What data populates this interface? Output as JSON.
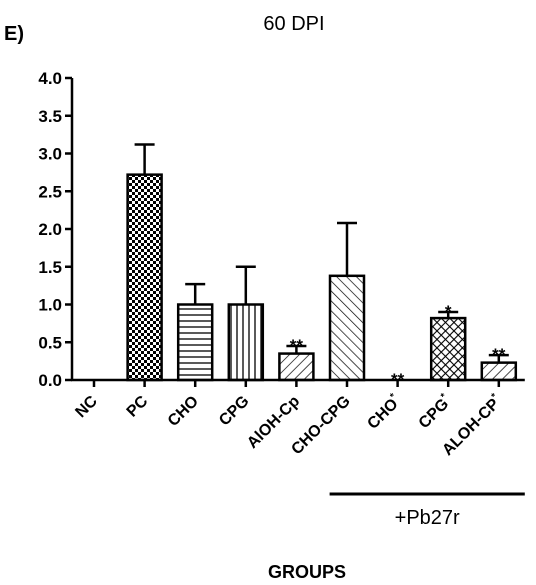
{
  "chart_data": {
    "type": "bar",
    "panel_label": "E)",
    "title": "60 DPI",
    "xlabel": "GROUPS",
    "ylabel": "",
    "ylim": [
      0,
      4.0
    ],
    "yticks": [
      "0.0",
      "0.5",
      "1.0",
      "1.5",
      "2.0",
      "2.5",
      "3.0",
      "3.5",
      "4.0"
    ],
    "categories": [
      {
        "label": "NC",
        "sup": ""
      },
      {
        "label": "PC",
        "sup": ""
      },
      {
        "label": "CHO",
        "sup": ""
      },
      {
        "label": "CPG",
        "sup": ""
      },
      {
        "label": "AlOH-Cp",
        "sup": ""
      },
      {
        "label": "CHO-CPG",
        "sup": ""
      },
      {
        "label": "CHO",
        "sup": "*"
      },
      {
        "label": "CPG",
        "sup": "*"
      },
      {
        "label": "ALOH-CP",
        "sup": "*"
      }
    ],
    "values": [
      0.0,
      2.72,
      1.0,
      1.0,
      0.35,
      1.38,
      0.0,
      0.82,
      0.23
    ],
    "errors": [
      0.0,
      0.4,
      0.27,
      0.5,
      0.1,
      0.7,
      0.0,
      0.08,
      0.1
    ],
    "patterns": [
      "none",
      "checker",
      "hlines",
      "vlines",
      "diag-up",
      "diag-down",
      "none",
      "crosshatch",
      "diag-up"
    ],
    "significance": [
      "",
      "",
      "",
      "",
      "**",
      "",
      "**",
      "*",
      "**"
    ],
    "bracket": {
      "label": "+Pb27r",
      "from_category": 6,
      "to_category": 8
    }
  }
}
